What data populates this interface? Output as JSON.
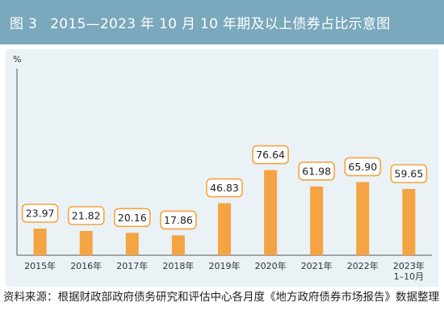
{
  "header": {
    "figure_label": "图 3",
    "title": "2015—2023 年 10 月 10 年期及以上债券占比示意图"
  },
  "footer": {
    "source": "资料来源：根据财政部政府债务研究和评估中心各月度《地方政府债券市场报告》数据整理"
  },
  "colors": {
    "header_bg": "#7aa8bd",
    "panel_bg": "#eaf2f5",
    "bar": "#f5a443",
    "label_border": "#f5a443",
    "label_bg": "#ffffff",
    "axis": "#555555"
  },
  "chart_data": {
    "type": "bar",
    "unit": "%",
    "categories": [
      "2015年",
      "2016年",
      "2017年",
      "2018年",
      "2019年",
      "2020年",
      "2021年",
      "2022年",
      "2023年\n1–10月"
    ],
    "values": [
      23.97,
      21.82,
      20.16,
      17.86,
      46.83,
      76.64,
      61.98,
      65.9,
      59.65
    ],
    "value_labels": [
      "23.97",
      "21.82",
      "20.16",
      "17.86",
      "46.83",
      "76.64",
      "61.98",
      "65.90",
      "59.65"
    ],
    "ylim": [
      0,
      100
    ],
    "grid": false,
    "legend": "none"
  }
}
